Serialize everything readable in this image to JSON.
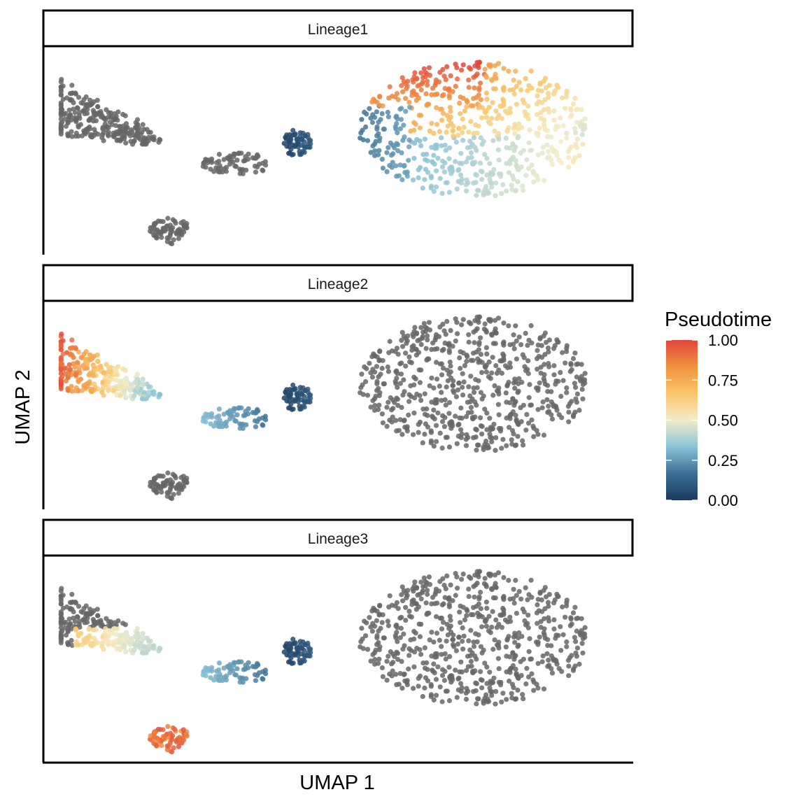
{
  "chart_data": {
    "type": "scatter",
    "xlabel": "UMAP 1",
    "ylabel": "UMAP 2",
    "facets": [
      "Lineage1",
      "Lineage2",
      "Lineage3"
    ],
    "na_color": "#666666",
    "legend": {
      "title": "Pseudotime",
      "position": "right",
      "ticks": [
        "1.00",
        "0.75",
        "0.50",
        "0.25",
        "0.00"
      ],
      "range": [
        0,
        1
      ],
      "colors": [
        "#1b3a5e",
        "#3d6f95",
        "#89c3d6",
        "#f2ecc8",
        "#fbc66a",
        "#f1913f",
        "#e0463a"
      ]
    },
    "xlim": [
      0,
      100
    ],
    "ylim": [
      0,
      40
    ],
    "grid": false,
    "clusters": [
      {
        "name": "left-fan",
        "cx": 14,
        "cy": 27,
        "rx": 10,
        "ry": 7.5
      },
      {
        "name": "bottom-blob",
        "cx": 21.5,
        "cy": 4.5,
        "rx": 3.5,
        "ry": 2.5
      },
      {
        "name": "bridge",
        "cx": 33,
        "cy": 17.5,
        "rx": 6.5,
        "ry": 2
      },
      {
        "name": "dark-knot",
        "cx": 43,
        "cy": 21.5,
        "rx": 2.5,
        "ry": 2.5
      },
      {
        "name": "right-blob",
        "cx": 73,
        "cy": 24,
        "rx": 19.5,
        "ry": 13
      }
    ],
    "pseudotime": {
      "Lineage1": {
        "left-fan": "NA",
        "bottom-blob": "NA",
        "bridge": "NA",
        "dark-knot": "0.00-0.10",
        "right-blob": "0.15-1.00"
      },
      "Lineage2": {
        "left-fan": "0.30-1.00",
        "bottom-blob": "NA",
        "bridge": "0.15-0.35",
        "dark-knot": "0.00-0.10",
        "right-blob": "NA"
      },
      "Lineage3": {
        "left-fan": "0.40-0.75",
        "bottom-blob": "0.80-1.00",
        "bridge": "0.15-0.35",
        "dark-knot": "0.00-0.10",
        "right-blob": "NA"
      }
    }
  }
}
